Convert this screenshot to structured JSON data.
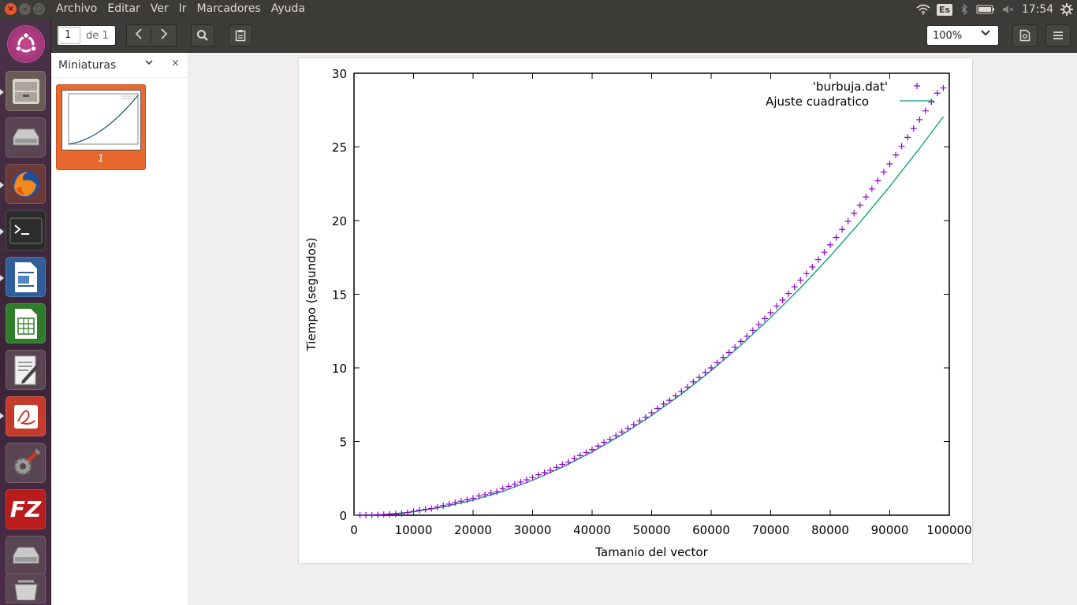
{
  "menubar": {
    "items": [
      "Archivo",
      "Editar",
      "Ver",
      "Ir",
      "Marcadores",
      "Ayuda"
    ],
    "keyboard": "Es",
    "clock": "17:54"
  },
  "toolbar": {
    "page_current": "1",
    "page_total": "de 1",
    "zoom": "100%"
  },
  "sidebar": {
    "title": "Miniaturas",
    "thumbnail_label": "1"
  },
  "launcher": {
    "apps": [
      "ubuntu-dash-icon",
      "file-manager-icon",
      "disk-drive-icon",
      "firefox-icon",
      "terminal-icon",
      "writer-icon",
      "calc-icon",
      "text-editor-icon",
      "pdf-viewer-icon",
      "system-settings-icon",
      "filezilla-icon",
      "disk-drive-icon",
      "trash-icon"
    ]
  },
  "chart_data": {
    "type": "scatter",
    "xlabel": "Tamanio del vector",
    "ylabel": "Tiempo (segundos)",
    "xlim": [
      0,
      100000
    ],
    "ylim": [
      0,
      30
    ],
    "xticks": [
      "0",
      "10000",
      "20000",
      "30000",
      "40000",
      "50000",
      "60000",
      "70000",
      "80000",
      "90000",
      "100000"
    ],
    "yticks": [
      "0",
      "5",
      "10",
      "15",
      "20",
      "25",
      "30"
    ],
    "legend_position": "top-right",
    "grid": false,
    "series": [
      {
        "name": "'burbuja.dat'",
        "style": "points",
        "marker": "+",
        "color": "#9400d3",
        "x": [
          1000,
          2000,
          3000,
          4000,
          5000,
          6000,
          7000,
          8000,
          9000,
          10000,
          11000,
          12000,
          13000,
          14000,
          15000,
          16000,
          17000,
          18000,
          19000,
          20000,
          21000,
          22000,
          23000,
          24000,
          25000,
          26000,
          27000,
          28000,
          29000,
          30000,
          31000,
          32000,
          33000,
          34000,
          35000,
          36000,
          37000,
          38000,
          39000,
          40000,
          41000,
          42000,
          43000,
          44000,
          45000,
          46000,
          47000,
          48000,
          49000,
          50000,
          51000,
          52000,
          53000,
          54000,
          55000,
          56000,
          57000,
          58000,
          59000,
          60000,
          61000,
          62000,
          63000,
          64000,
          65000,
          66000,
          67000,
          68000,
          69000,
          70000,
          71000,
          72000,
          73000,
          74000,
          75000,
          76000,
          77000,
          78000,
          79000,
          80000,
          81000,
          82000,
          83000,
          84000,
          85000,
          86000,
          87000,
          88000,
          89000,
          90000,
          91000,
          92000,
          93000,
          94000,
          95000,
          96000,
          97000,
          98000,
          99000
        ],
        "y": [
          0.0,
          0.0,
          0.01,
          0.02,
          0.05,
          0.06,
          0.08,
          0.12,
          0.18,
          0.26,
          0.34,
          0.4,
          0.45,
          0.55,
          0.65,
          0.75,
          0.85,
          0.95,
          1.05,
          1.15,
          1.3,
          1.4,
          1.5,
          1.6,
          1.8,
          1.95,
          2.1,
          2.25,
          2.4,
          2.55,
          2.75,
          2.9,
          3.05,
          3.25,
          3.45,
          3.6,
          3.85,
          4.05,
          4.25,
          4.45,
          4.7,
          4.95,
          5.15,
          5.4,
          5.65,
          5.9,
          6.15,
          6.4,
          6.65,
          6.95,
          7.25,
          7.55,
          7.8,
          8.1,
          8.4,
          8.7,
          9.05,
          9.35,
          9.7,
          10.0,
          10.35,
          10.7,
          11.05,
          11.4,
          11.8,
          12.15,
          12.55,
          12.95,
          13.35,
          13.75,
          14.2,
          14.6,
          15.05,
          15.5,
          15.95,
          16.4,
          16.85,
          17.35,
          17.85,
          18.35,
          18.85,
          19.4,
          19.95,
          20.5,
          21.05,
          21.6,
          22.15,
          22.7,
          23.3,
          23.85,
          24.45,
          25.05,
          25.65,
          26.25,
          26.85,
          27.45,
          28.05,
          28.65,
          29.0
        ]
      },
      {
        "name": "Ajuste cuadratico",
        "style": "line",
        "color": "#009e73",
        "x": [
          0,
          5000,
          10000,
          15000,
          20000,
          25000,
          30000,
          35000,
          40000,
          45000,
          50000,
          55000,
          60000,
          65000,
          70000,
          75000,
          80000,
          85000,
          90000,
          95000,
          99000
        ],
        "y": [
          0.0,
          0.05,
          0.23,
          0.56,
          1.02,
          1.62,
          2.37,
          3.26,
          4.29,
          5.46,
          6.77,
          8.22,
          9.81,
          11.54,
          13.42,
          15.43,
          17.59,
          19.88,
          22.32,
          24.9,
          27.06
        ]
      }
    ]
  }
}
